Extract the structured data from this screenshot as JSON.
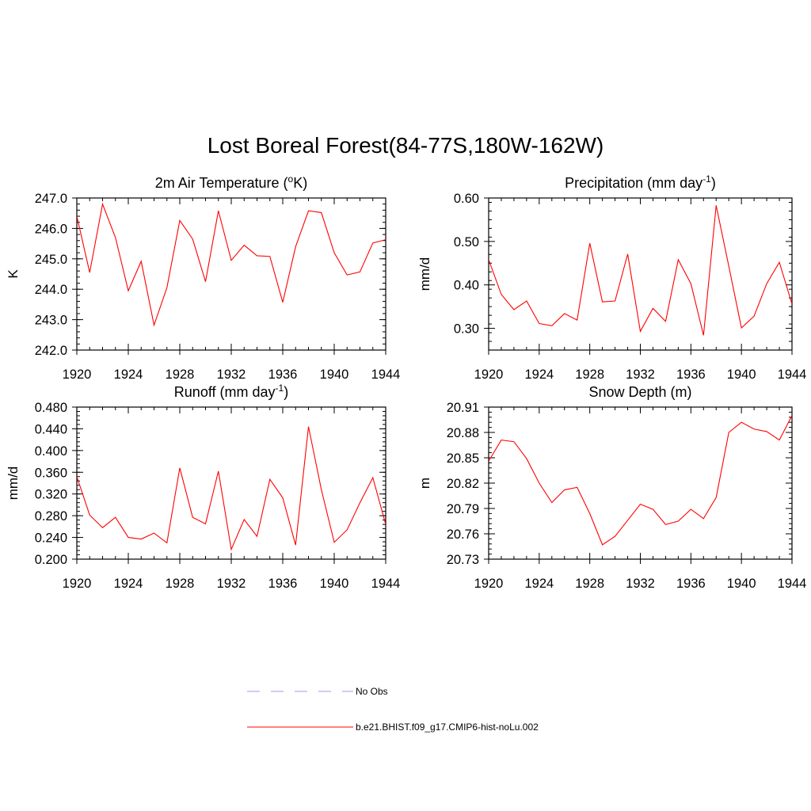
{
  "title": "Lost Boreal Forest(84-77S,180W-162W)",
  "colors": {
    "series": "#ff0000",
    "obs": "#9999ff",
    "axis": "#000000"
  },
  "legend": {
    "entries": [
      {
        "label": "No Obs",
        "style": "dashed",
        "color": "#9999ff"
      },
      {
        "label": "b.e21.BHIST.f09_g17.CMIP6-hist-noLu.002",
        "style": "solid",
        "color": "#ff0000"
      }
    ]
  },
  "chart_data": [
    {
      "type": "line",
      "title": "2m Air Temperature (°K)",
      "title_parts": {
        "pre": "2m Air Temperature (",
        "sup": "o",
        "post": "K)"
      },
      "ylabel": "K",
      "xlim": [
        1920,
        1944
      ],
      "ylim": [
        242.0,
        247.0
      ],
      "x_ticks": [
        "1920",
        "1924",
        "1928",
        "1932",
        "1936",
        "1940",
        "1944"
      ],
      "y_ticks": [
        "242.0",
        "243.0",
        "244.0",
        "245.0",
        "246.0",
        "247.0"
      ],
      "grid": false,
      "x": [
        1920,
        1921,
        1922,
        1923,
        1924,
        1925,
        1926,
        1927,
        1928,
        1929,
        1930,
        1931,
        1932,
        1933,
        1934,
        1935,
        1936,
        1937,
        1938,
        1939,
        1940,
        1941,
        1942,
        1943,
        1944
      ],
      "series": [
        {
          "values": [
            246.4,
            244.55,
            246.8,
            245.7,
            243.95,
            244.92,
            242.82,
            244.05,
            246.26,
            245.65,
            244.25,
            246.58,
            244.95,
            245.45,
            245.1,
            245.08,
            243.57,
            245.4,
            246.58,
            246.52,
            245.2,
            244.47,
            244.57,
            245.52,
            245.63
          ]
        }
      ]
    },
    {
      "type": "line",
      "title": "Precipitation (mm day-1)",
      "title_parts": {
        "pre": "Precipitation (mm day",
        "sup": "-1",
        "post": ")"
      },
      "ylabel": "mm/d",
      "xlim": [
        1920,
        1944
      ],
      "ylim": [
        0.25,
        0.6
      ],
      "x_ticks": [
        "1920",
        "1924",
        "1928",
        "1932",
        "1936",
        "1940",
        "1944"
      ],
      "y_ticks": [
        "0.30",
        "0.40",
        "0.50",
        "0.60"
      ],
      "grid": false,
      "x": [
        1920,
        1921,
        1922,
        1923,
        1924,
        1925,
        1926,
        1927,
        1928,
        1929,
        1930,
        1931,
        1932,
        1933,
        1934,
        1935,
        1936,
        1937,
        1938,
        1939,
        1940,
        1941,
        1942,
        1943,
        1944
      ],
      "series": [
        {
          "values": [
            0.458,
            0.378,
            0.343,
            0.363,
            0.311,
            0.306,
            0.334,
            0.319,
            0.496,
            0.361,
            0.363,
            0.471,
            0.293,
            0.346,
            0.316,
            0.458,
            0.403,
            0.284,
            0.583,
            0.443,
            0.301,
            0.328,
            0.403,
            0.452,
            0.356
          ]
        }
      ]
    },
    {
      "type": "line",
      "title": "Runoff (mm day-1)",
      "title_parts": {
        "pre": "Runoff (mm day",
        "sup": "-1",
        "post": ")"
      },
      "ylabel": "mm/d",
      "xlim": [
        1920,
        1944
      ],
      "ylim": [
        0.2,
        0.48
      ],
      "x_ticks": [
        "1920",
        "1924",
        "1928",
        "1932",
        "1936",
        "1940",
        "1944"
      ],
      "y_ticks": [
        "0.200",
        "0.240",
        "0.280",
        "0.320",
        "0.360",
        "0.400",
        "0.440",
        "0.480"
      ],
      "grid": false,
      "x": [
        1920,
        1921,
        1922,
        1923,
        1924,
        1925,
        1926,
        1927,
        1928,
        1929,
        1930,
        1931,
        1932,
        1933,
        1934,
        1935,
        1936,
        1937,
        1938,
        1939,
        1940,
        1941,
        1942,
        1943,
        1944
      ],
      "series": [
        {
          "values": [
            0.352,
            0.281,
            0.258,
            0.277,
            0.24,
            0.237,
            0.248,
            0.23,
            0.368,
            0.277,
            0.265,
            0.362,
            0.218,
            0.273,
            0.242,
            0.347,
            0.313,
            0.226,
            0.444,
            0.328,
            0.231,
            0.254,
            0.304,
            0.35,
            0.264
          ]
        }
      ]
    },
    {
      "type": "line",
      "title": "Snow Depth (m)",
      "title_parts": {
        "pre": "Snow Depth (m)",
        "sup": "",
        "post": ""
      },
      "ylabel": "m",
      "xlim": [
        1920,
        1944
      ],
      "ylim": [
        20.73,
        20.91
      ],
      "x_ticks": [
        "1920",
        "1924",
        "1928",
        "1932",
        "1936",
        "1940",
        "1944"
      ],
      "y_ticks": [
        "20.73",
        "20.76",
        "20.79",
        "20.82",
        "20.85",
        "20.88",
        "20.91"
      ],
      "grid": false,
      "x": [
        1920,
        1921,
        1922,
        1923,
        1924,
        1925,
        1926,
        1927,
        1928,
        1929,
        1930,
        1931,
        1932,
        1933,
        1934,
        1935,
        1936,
        1937,
        1938,
        1939,
        1940,
        1941,
        1942,
        1943,
        1944
      ],
      "series": [
        {
          "values": [
            20.846,
            20.871,
            20.869,
            20.849,
            20.82,
            20.797,
            20.812,
            20.815,
            20.784,
            20.747,
            20.757,
            20.776,
            20.795,
            20.789,
            20.771,
            20.775,
            20.789,
            20.778,
            20.803,
            20.88,
            20.892,
            20.884,
            20.881,
            20.871,
            20.9
          ]
        }
      ]
    }
  ]
}
